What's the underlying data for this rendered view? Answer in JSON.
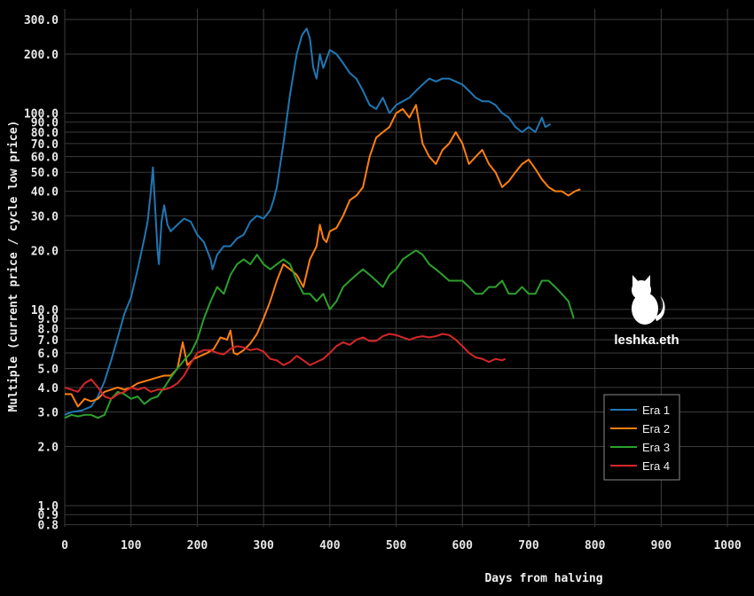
{
  "chart_data": {
    "type": "line",
    "xlabel": "Days from halving",
    "ylabel": "Multiple (current price / cycle low price)",
    "x_scale": "linear",
    "y_scale": "log",
    "xlim": [
      0,
      1040
    ],
    "ylim": [
      0.78,
      340
    ],
    "grid": true,
    "legend_position": "right",
    "x_ticks": [
      0,
      100,
      200,
      300,
      400,
      500,
      600,
      700,
      800,
      900,
      1000
    ],
    "y_ticks": [
      0.8,
      0.9,
      1.0,
      2.0,
      3.0,
      4.0,
      5.0,
      6.0,
      7.0,
      8.0,
      9.0,
      10.0,
      20.0,
      30.0,
      40.0,
      50.0,
      60.0,
      70.0,
      80.0,
      90.0,
      100.0,
      200.0,
      300.0
    ],
    "series": [
      {
        "name": "Era 1",
        "color": "#1f77b4",
        "points": [
          [
            0,
            2.9
          ],
          [
            10,
            3.0
          ],
          [
            25,
            3.05
          ],
          [
            40,
            3.2
          ],
          [
            50,
            3.6
          ],
          [
            60,
            4.3
          ],
          [
            70,
            5.5
          ],
          [
            80,
            7.2
          ],
          [
            90,
            9.5
          ],
          [
            100,
            11.5
          ],
          [
            110,
            16
          ],
          [
            120,
            23
          ],
          [
            125,
            28
          ],
          [
            130,
            40
          ],
          [
            133,
            53
          ],
          [
            136,
            35
          ],
          [
            140,
            20
          ],
          [
            142,
            17
          ],
          [
            146,
            28
          ],
          [
            150,
            34
          ],
          [
            155,
            27
          ],
          [
            160,
            25
          ],
          [
            170,
            27
          ],
          [
            180,
            29
          ],
          [
            190,
            28
          ],
          [
            200,
            24
          ],
          [
            210,
            22
          ],
          [
            220,
            18
          ],
          [
            223,
            16
          ],
          [
            230,
            19
          ],
          [
            240,
            21
          ],
          [
            250,
            21
          ],
          [
            260,
            23
          ],
          [
            270,
            24
          ],
          [
            280,
            28
          ],
          [
            290,
            30
          ],
          [
            300,
            29
          ],
          [
            310,
            32
          ],
          [
            315,
            36
          ],
          [
            320,
            42
          ],
          [
            330,
            70
          ],
          [
            340,
            125
          ],
          [
            350,
            200
          ],
          [
            358,
            250
          ],
          [
            365,
            270
          ],
          [
            370,
            240
          ],
          [
            375,
            170
          ],
          [
            380,
            150
          ],
          [
            385,
            200
          ],
          [
            390,
            170
          ],
          [
            400,
            210
          ],
          [
            410,
            200
          ],
          [
            420,
            180
          ],
          [
            430,
            160
          ],
          [
            440,
            150
          ],
          [
            450,
            130
          ],
          [
            460,
            110
          ],
          [
            470,
            105
          ],
          [
            480,
            120
          ],
          [
            490,
            100
          ],
          [
            500,
            110
          ],
          [
            510,
            115
          ],
          [
            520,
            120
          ],
          [
            530,
            130
          ],
          [
            540,
            140
          ],
          [
            550,
            150
          ],
          [
            560,
            145
          ],
          [
            570,
            150
          ],
          [
            580,
            150
          ],
          [
            590,
            145
          ],
          [
            600,
            140
          ],
          [
            610,
            130
          ],
          [
            620,
            120
          ],
          [
            630,
            115
          ],
          [
            640,
            115
          ],
          [
            650,
            110
          ],
          [
            660,
            100
          ],
          [
            670,
            95
          ],
          [
            680,
            85
          ],
          [
            690,
            80
          ],
          [
            700,
            85
          ],
          [
            710,
            80
          ],
          [
            720,
            95
          ],
          [
            725,
            85
          ],
          [
            733,
            88
          ]
        ]
      },
      {
        "name": "Era 2",
        "color": "#ff7f0e",
        "points": [
          [
            0,
            3.7
          ],
          [
            10,
            3.7
          ],
          [
            20,
            3.2
          ],
          [
            30,
            3.5
          ],
          [
            40,
            3.4
          ],
          [
            50,
            3.5
          ],
          [
            60,
            3.8
          ],
          [
            70,
            3.9
          ],
          [
            80,
            4.0
          ],
          [
            90,
            3.9
          ],
          [
            100,
            4.0
          ],
          [
            110,
            4.2
          ],
          [
            120,
            4.3
          ],
          [
            130,
            4.4
          ],
          [
            140,
            4.5
          ],
          [
            150,
            4.6
          ],
          [
            160,
            4.6
          ],
          [
            170,
            5.0
          ],
          [
            178,
            6.8
          ],
          [
            185,
            5.2
          ],
          [
            195,
            5.6
          ],
          [
            205,
            5.8
          ],
          [
            215,
            6.0
          ],
          [
            225,
            6.3
          ],
          [
            235,
            7.2
          ],
          [
            245,
            7.0
          ],
          [
            250,
            7.8
          ],
          [
            255,
            6.0
          ],
          [
            260,
            5.9
          ],
          [
            270,
            6.2
          ],
          [
            280,
            6.7
          ],
          [
            290,
            7.5
          ],
          [
            300,
            9.0
          ],
          [
            310,
            11
          ],
          [
            320,
            14
          ],
          [
            330,
            17
          ],
          [
            340,
            16
          ],
          [
            350,
            15
          ],
          [
            360,
            13
          ],
          [
            370,
            18
          ],
          [
            380,
            21
          ],
          [
            385,
            27
          ],
          [
            390,
            23
          ],
          [
            395,
            22
          ],
          [
            400,
            25
          ],
          [
            410,
            26
          ],
          [
            420,
            30
          ],
          [
            430,
            36
          ],
          [
            440,
            38
          ],
          [
            450,
            42
          ],
          [
            460,
            60
          ],
          [
            470,
            75
          ],
          [
            480,
            80
          ],
          [
            490,
            85
          ],
          [
            500,
            100
          ],
          [
            510,
            105
          ],
          [
            520,
            95
          ],
          [
            530,
            110
          ],
          [
            540,
            70
          ],
          [
            550,
            60
          ],
          [
            560,
            55
          ],
          [
            570,
            65
          ],
          [
            580,
            70
          ],
          [
            590,
            80
          ],
          [
            600,
            70
          ],
          [
            610,
            55
          ],
          [
            620,
            60
          ],
          [
            630,
            65
          ],
          [
            640,
            55
          ],
          [
            650,
            50
          ],
          [
            660,
            42
          ],
          [
            670,
            45
          ],
          [
            680,
            50
          ],
          [
            690,
            55
          ],
          [
            700,
            58
          ],
          [
            710,
            52
          ],
          [
            720,
            46
          ],
          [
            730,
            42
          ],
          [
            740,
            40
          ],
          [
            750,
            40
          ],
          [
            760,
            38
          ],
          [
            770,
            40
          ],
          [
            778,
            41
          ]
        ]
      },
      {
        "name": "Era 3",
        "color": "#2ca02c",
        "points": [
          [
            0,
            2.8
          ],
          [
            10,
            2.9
          ],
          [
            20,
            2.85
          ],
          [
            30,
            2.9
          ],
          [
            40,
            2.9
          ],
          [
            50,
            2.8
          ],
          [
            60,
            2.9
          ],
          [
            70,
            3.5
          ],
          [
            80,
            3.8
          ],
          [
            90,
            3.7
          ],
          [
            100,
            3.5
          ],
          [
            110,
            3.6
          ],
          [
            120,
            3.3
          ],
          [
            130,
            3.5
          ],
          [
            140,
            3.6
          ],
          [
            150,
            4.0
          ],
          [
            160,
            4.5
          ],
          [
            170,
            5.0
          ],
          [
            180,
            5.5
          ],
          [
            190,
            6.0
          ],
          [
            200,
            7.0
          ],
          [
            210,
            9.0
          ],
          [
            220,
            11
          ],
          [
            230,
            13
          ],
          [
            240,
            12
          ],
          [
            250,
            15
          ],
          [
            260,
            17
          ],
          [
            270,
            18
          ],
          [
            280,
            17
          ],
          [
            290,
            19
          ],
          [
            300,
            17
          ],
          [
            310,
            16
          ],
          [
            320,
            17
          ],
          [
            330,
            18
          ],
          [
            340,
            17
          ],
          [
            350,
            14
          ],
          [
            360,
            12
          ],
          [
            370,
            12
          ],
          [
            380,
            11
          ],
          [
            390,
            12
          ],
          [
            400,
            10
          ],
          [
            410,
            11
          ],
          [
            420,
            13
          ],
          [
            430,
            14
          ],
          [
            440,
            15
          ],
          [
            450,
            16
          ],
          [
            460,
            15
          ],
          [
            470,
            14
          ],
          [
            480,
            13
          ],
          [
            490,
            15
          ],
          [
            500,
            16
          ],
          [
            510,
            18
          ],
          [
            520,
            19
          ],
          [
            530,
            20
          ],
          [
            540,
            19
          ],
          [
            550,
            17
          ],
          [
            560,
            16
          ],
          [
            570,
            15
          ],
          [
            580,
            14
          ],
          [
            590,
            14
          ],
          [
            600,
            14
          ],
          [
            610,
            13
          ],
          [
            620,
            12
          ],
          [
            630,
            12
          ],
          [
            640,
            13
          ],
          [
            650,
            13
          ],
          [
            660,
            14
          ],
          [
            670,
            12
          ],
          [
            680,
            12
          ],
          [
            690,
            13
          ],
          [
            700,
            12
          ],
          [
            710,
            12
          ],
          [
            720,
            14
          ],
          [
            730,
            14
          ],
          [
            740,
            13
          ],
          [
            750,
            12
          ],
          [
            760,
            11
          ],
          [
            768,
            9
          ]
        ]
      },
      {
        "name": "Era 4",
        "color": "#d62728",
        "points": [
          [
            0,
            4.0
          ],
          [
            10,
            3.9
          ],
          [
            20,
            3.8
          ],
          [
            30,
            4.2
          ],
          [
            40,
            4.4
          ],
          [
            50,
            4.0
          ],
          [
            60,
            3.6
          ],
          [
            70,
            3.5
          ],
          [
            80,
            3.7
          ],
          [
            90,
            3.8
          ],
          [
            100,
            4.0
          ],
          [
            110,
            3.9
          ],
          [
            120,
            4.0
          ],
          [
            130,
            3.8
          ],
          [
            140,
            3.9
          ],
          [
            150,
            3.9
          ],
          [
            160,
            4.0
          ],
          [
            170,
            4.2
          ],
          [
            180,
            4.6
          ],
          [
            190,
            5.3
          ],
          [
            200,
            6.0
          ],
          [
            210,
            6.2
          ],
          [
            220,
            6.2
          ],
          [
            230,
            6.0
          ],
          [
            240,
            5.9
          ],
          [
            250,
            6.3
          ],
          [
            260,
            6.5
          ],
          [
            270,
            6.4
          ],
          [
            280,
            6.2
          ],
          [
            290,
            6.3
          ],
          [
            300,
            6.1
          ],
          [
            310,
            5.6
          ],
          [
            320,
            5.5
          ],
          [
            330,
            5.2
          ],
          [
            340,
            5.4
          ],
          [
            350,
            5.8
          ],
          [
            360,
            5.5
          ],
          [
            370,
            5.2
          ],
          [
            380,
            5.4
          ],
          [
            390,
            5.6
          ],
          [
            400,
            6.0
          ],
          [
            410,
            6.5
          ],
          [
            420,
            6.8
          ],
          [
            430,
            6.6
          ],
          [
            440,
            7.0
          ],
          [
            450,
            7.2
          ],
          [
            460,
            6.9
          ],
          [
            470,
            6.9
          ],
          [
            480,
            7.3
          ],
          [
            490,
            7.5
          ],
          [
            500,
            7.4
          ],
          [
            510,
            7.2
          ],
          [
            520,
            7.0
          ],
          [
            530,
            7.2
          ],
          [
            540,
            7.3
          ],
          [
            550,
            7.2
          ],
          [
            560,
            7.3
          ],
          [
            570,
            7.5
          ],
          [
            580,
            7.4
          ],
          [
            590,
            7.0
          ],
          [
            600,
            6.5
          ],
          [
            610,
            6.0
          ],
          [
            620,
            5.7
          ],
          [
            630,
            5.6
          ],
          [
            640,
            5.4
          ],
          [
            650,
            5.6
          ],
          [
            660,
            5.5
          ],
          [
            665,
            5.6
          ]
        ]
      }
    ]
  },
  "watermark": {
    "text": "leshka.eth",
    "icon": "cat-silhouette-icon"
  }
}
